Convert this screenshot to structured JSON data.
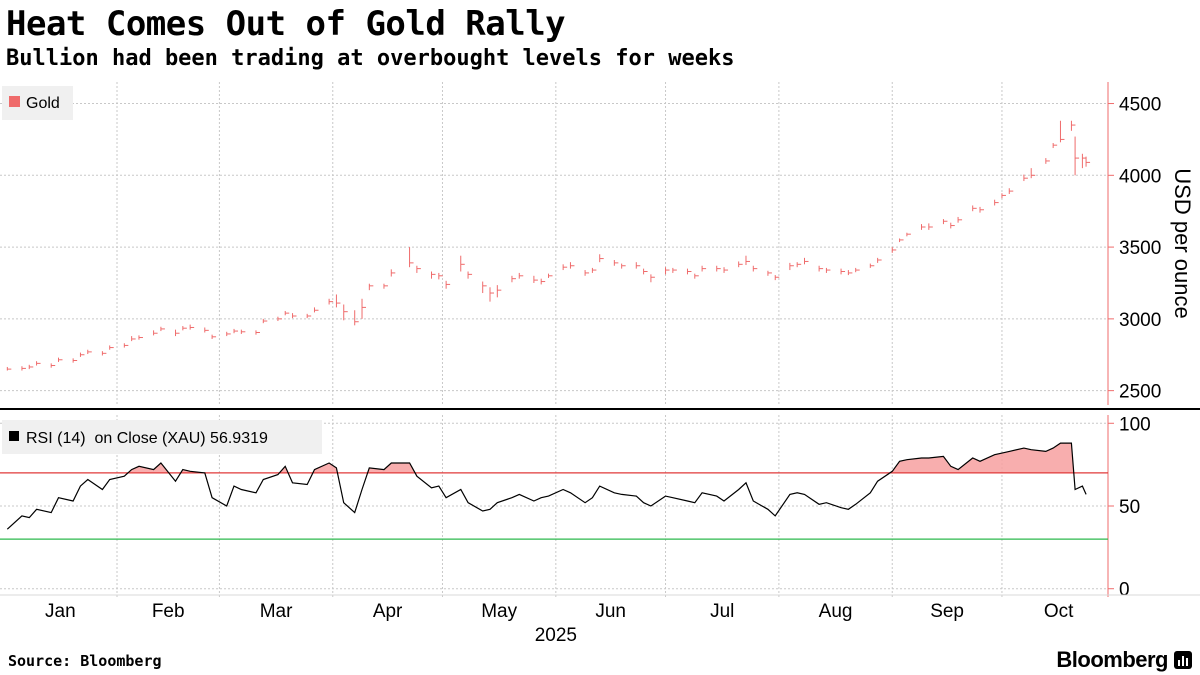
{
  "title": "Heat Comes Out of Gold Rally",
  "subtitle": "Bullion had been trading at overbought levels for weeks",
  "source": "Source: Bloomberg",
  "brand": "Bloomberg",
  "colors": {
    "price": "#ef6b6b",
    "rsi": "#000000",
    "overbought": "#e03a3a",
    "oversold": "#2db84d",
    "grid": "#c8c8c8",
    "fill": "#f7a0a0"
  },
  "chart_data": [
    {
      "type": "ohlc",
      "legend": "Gold",
      "ylabel": "USD per ounce",
      "ylim": [
        2400,
        4650
      ],
      "yticks": [
        2500,
        3000,
        3500,
        4000,
        4500
      ],
      "xlabel": "2025",
      "xticks": [
        "Jan",
        "Feb",
        "Mar",
        "Apr",
        "May",
        "Jun",
        "Jul",
        "Aug",
        "Sep",
        "Oct"
      ],
      "grid": true,
      "legend_position": "top-left",
      "dates": [
        "2025-01-02",
        "2025-01-06",
        "2025-01-08",
        "2025-01-10",
        "2025-01-14",
        "2025-01-16",
        "2025-01-20",
        "2025-01-22",
        "2025-01-24",
        "2025-01-28",
        "2025-01-30",
        "2025-02-03",
        "2025-02-05",
        "2025-02-07",
        "2025-02-11",
        "2025-02-13",
        "2025-02-17",
        "2025-02-19",
        "2025-02-21",
        "2025-02-25",
        "2025-02-27",
        "2025-03-03",
        "2025-03-05",
        "2025-03-07",
        "2025-03-11",
        "2025-03-13",
        "2025-03-17",
        "2025-03-19",
        "2025-03-21",
        "2025-03-25",
        "2025-03-27",
        "2025-03-31",
        "2025-04-02",
        "2025-04-04",
        "2025-04-07",
        "2025-04-09",
        "2025-04-11",
        "2025-04-15",
        "2025-04-17",
        "2025-04-22",
        "2025-04-24",
        "2025-04-28",
        "2025-04-30",
        "2025-05-02",
        "2025-05-06",
        "2025-05-08",
        "2025-05-12",
        "2025-05-14",
        "2025-05-16",
        "2025-05-20",
        "2025-05-22",
        "2025-05-26",
        "2025-05-28",
        "2025-05-30",
        "2025-06-03",
        "2025-06-05",
        "2025-06-09",
        "2025-06-11",
        "2025-06-13",
        "2025-06-17",
        "2025-06-19",
        "2025-06-23",
        "2025-06-25",
        "2025-06-27",
        "2025-07-01",
        "2025-07-03",
        "2025-07-07",
        "2025-07-09",
        "2025-07-11",
        "2025-07-15",
        "2025-07-17",
        "2025-07-21",
        "2025-07-23",
        "2025-07-25",
        "2025-07-29",
        "2025-07-31",
        "2025-08-04",
        "2025-08-06",
        "2025-08-08",
        "2025-08-12",
        "2025-08-14",
        "2025-08-18",
        "2025-08-20",
        "2025-08-22",
        "2025-08-26",
        "2025-08-28",
        "2025-09-01",
        "2025-09-03",
        "2025-09-05",
        "2025-09-09",
        "2025-09-11",
        "2025-09-15",
        "2025-09-17",
        "2025-09-19",
        "2025-09-23",
        "2025-09-25",
        "2025-09-29",
        "2025-10-01",
        "2025-10-03",
        "2025-10-07",
        "2025-10-09",
        "2025-10-13",
        "2025-10-15",
        "2025-10-17",
        "2025-10-20",
        "2025-10-21",
        "2025-10-23",
        "2025-10-24"
      ],
      "close": [
        2650,
        2655,
        2665,
        2690,
        2675,
        2715,
        2710,
        2750,
        2770,
        2760,
        2800,
        2815,
        2860,
        2870,
        2900,
        2930,
        2900,
        2935,
        2940,
        2920,
        2875,
        2895,
        2915,
        2910,
        2905,
        2985,
        3000,
        3040,
        3020,
        3020,
        3060,
        3120,
        3110,
        3050,
        2980,
        3080,
        3230,
        3230,
        3320,
        3390,
        3350,
        3310,
        3300,
        3240,
        3380,
        3310,
        3230,
        3180,
        3200,
        3280,
        3300,
        3270,
        3260,
        3300,
        3360,
        3370,
        3320,
        3340,
        3420,
        3390,
        3370,
        3370,
        3330,
        3290,
        3340,
        3340,
        3330,
        3300,
        3350,
        3350,
        3340,
        3380,
        3400,
        3350,
        3320,
        3290,
        3370,
        3380,
        3400,
        3350,
        3340,
        3330,
        3320,
        3340,
        3370,
        3410,
        3480,
        3550,
        3590,
        3640,
        3640,
        3680,
        3650,
        3690,
        3770,
        3760,
        3810,
        3860,
        3890,
        3980,
        4000,
        4100,
        4210,
        4250,
        4350,
        4120,
        4120,
        4090
      ],
      "high": [
        2665,
        2670,
        2680,
        2705,
        2690,
        2730,
        2725,
        2765,
        2785,
        2775,
        2815,
        2830,
        2880,
        2885,
        2920,
        2945,
        2925,
        2950,
        2960,
        2940,
        2890,
        2910,
        2930,
        2925,
        2920,
        3000,
        3015,
        3055,
        3040,
        3035,
        3080,
        3140,
        3170,
        3100,
        3060,
        3140,
        3245,
        3245,
        3345,
        3500,
        3370,
        3330,
        3320,
        3265,
        3440,
        3330,
        3260,
        3220,
        3235,
        3300,
        3320,
        3300,
        3280,
        3315,
        3380,
        3395,
        3340,
        3355,
        3450,
        3410,
        3385,
        3395,
        3350,
        3310,
        3360,
        3355,
        3350,
        3315,
        3370,
        3370,
        3360,
        3400,
        3440,
        3370,
        3335,
        3305,
        3390,
        3395,
        3425,
        3370,
        3355,
        3350,
        3340,
        3355,
        3385,
        3425,
        3500,
        3560,
        3600,
        3660,
        3665,
        3695,
        3670,
        3710,
        3790,
        3780,
        3830,
        3875,
        3910,
        4005,
        4050,
        4120,
        4225,
        4380,
        4380,
        4270,
        4150,
        4130
      ],
      "low": [
        2640,
        2640,
        2650,
        2675,
        2660,
        2700,
        2695,
        2735,
        2755,
        2745,
        2785,
        2800,
        2845,
        2855,
        2885,
        2915,
        2880,
        2920,
        2925,
        2905,
        2860,
        2880,
        2900,
        2895,
        2890,
        2970,
        2985,
        3025,
        3005,
        3005,
        3045,
        3100,
        3080,
        2990,
        2955,
        3000,
        3200,
        3210,
        3295,
        3360,
        3320,
        3280,
        3275,
        3210,
        3330,
        3280,
        3180,
        3120,
        3150,
        3255,
        3280,
        3250,
        3240,
        3285,
        3340,
        3350,
        3300,
        3320,
        3395,
        3370,
        3350,
        3350,
        3310,
        3255,
        3310,
        3320,
        3310,
        3280,
        3330,
        3330,
        3320,
        3360,
        3375,
        3330,
        3300,
        3270,
        3340,
        3360,
        3380,
        3330,
        3320,
        3310,
        3305,
        3325,
        3355,
        3390,
        3460,
        3535,
        3575,
        3620,
        3620,
        3660,
        3630,
        3670,
        3750,
        3740,
        3790,
        3840,
        3870,
        3960,
        3980,
        4080,
        4190,
        4230,
        4310,
        4000,
        4050,
        4060
      ]
    },
    {
      "type": "line",
      "legend": "RSI (14)  on Close (XAU) 56.9319",
      "ylim": [
        -5,
        105
      ],
      "yticks": [
        0,
        50,
        100
      ],
      "overbought": 70,
      "oversold": 30,
      "grid": true,
      "legend_position": "top-left",
      "dates": [
        "2025-01-02",
        "2025-01-06",
        "2025-01-08",
        "2025-01-10",
        "2025-01-14",
        "2025-01-16",
        "2025-01-20",
        "2025-01-22",
        "2025-01-24",
        "2025-01-28",
        "2025-01-30",
        "2025-02-03",
        "2025-02-05",
        "2025-02-07",
        "2025-02-11",
        "2025-02-13",
        "2025-02-17",
        "2025-02-19",
        "2025-02-21",
        "2025-02-25",
        "2025-02-27",
        "2025-03-03",
        "2025-03-05",
        "2025-03-07",
        "2025-03-11",
        "2025-03-13",
        "2025-03-17",
        "2025-03-19",
        "2025-03-21",
        "2025-03-25",
        "2025-03-27",
        "2025-03-31",
        "2025-04-02",
        "2025-04-04",
        "2025-04-07",
        "2025-04-09",
        "2025-04-11",
        "2025-04-15",
        "2025-04-17",
        "2025-04-22",
        "2025-04-24",
        "2025-04-28",
        "2025-04-30",
        "2025-05-02",
        "2025-05-06",
        "2025-05-08",
        "2025-05-12",
        "2025-05-14",
        "2025-05-16",
        "2025-05-20",
        "2025-05-22",
        "2025-05-26",
        "2025-05-28",
        "2025-05-30",
        "2025-06-03",
        "2025-06-05",
        "2025-06-09",
        "2025-06-11",
        "2025-06-13",
        "2025-06-17",
        "2025-06-19",
        "2025-06-23",
        "2025-06-25",
        "2025-06-27",
        "2025-07-01",
        "2025-07-03",
        "2025-07-07",
        "2025-07-09",
        "2025-07-11",
        "2025-07-15",
        "2025-07-17",
        "2025-07-21",
        "2025-07-23",
        "2025-07-25",
        "2025-07-29",
        "2025-07-31",
        "2025-08-04",
        "2025-08-06",
        "2025-08-08",
        "2025-08-12",
        "2025-08-14",
        "2025-08-18",
        "2025-08-20",
        "2025-08-22",
        "2025-08-26",
        "2025-08-28",
        "2025-09-01",
        "2025-09-03",
        "2025-09-05",
        "2025-09-09",
        "2025-09-11",
        "2025-09-15",
        "2025-09-17",
        "2025-09-19",
        "2025-09-23",
        "2025-09-25",
        "2025-09-29",
        "2025-10-01",
        "2025-10-03",
        "2025-10-07",
        "2025-10-09",
        "2025-10-13",
        "2025-10-15",
        "2025-10-17",
        "2025-10-20",
        "2025-10-21",
        "2025-10-23",
        "2025-10-24"
      ],
      "values": [
        36,
        44,
        43,
        48,
        46,
        55,
        53,
        62,
        66,
        60,
        66,
        68,
        72,
        74,
        72,
        76,
        65,
        72,
        71,
        70,
        55,
        50,
        62,
        60,
        58,
        66,
        69,
        74,
        64,
        63,
        72,
        76,
        73,
        52,
        46,
        60,
        73,
        72,
        76,
        76,
        68,
        61,
        62,
        55,
        60,
        52,
        47,
        48,
        52,
        55,
        57,
        53,
        55,
        56,
        60,
        58,
        52,
        55,
        62,
        58,
        57,
        56,
        52,
        50,
        56,
        55,
        53,
        52,
        58,
        56,
        53,
        60,
        64,
        53,
        48,
        44,
        57,
        58,
        57,
        51,
        52,
        49,
        48,
        51,
        58,
        65,
        71,
        77,
        78,
        79,
        79,
        80,
        74,
        72,
        79,
        77,
        81,
        82,
        83,
        85,
        84,
        83,
        85,
        88,
        88,
        60,
        62,
        57
      ]
    }
  ]
}
